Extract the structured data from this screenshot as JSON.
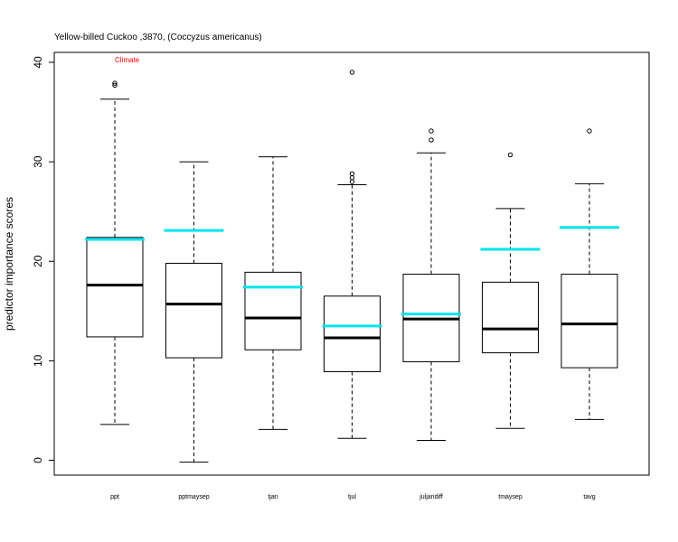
{
  "chart_data": {
    "type": "boxplot",
    "title": "Yellow-billed Cuckoo ,3870, (Coccyzus americanus)",
    "ylabel": "predictor importance scores",
    "xlabel": "",
    "ylim": [
      -1.5,
      41
    ],
    "yticks": [
      0,
      10,
      20,
      30,
      40
    ],
    "grid": false,
    "annotation": {
      "text": "Climate",
      "color": "#ff0000"
    },
    "categories": [
      "ppt",
      "pptmaysep",
      "tjan",
      "tjul",
      "julјandiff",
      "tmaysep",
      "tavg"
    ],
    "boxes": [
      {
        "whisker_low": 3.6,
        "q1": 12.4,
        "median": 17.6,
        "q3": 22.4,
        "whisker_high": 36.3,
        "outliers": [
          37.7,
          37.9
        ]
      },
      {
        "whisker_low": -0.2,
        "q1": 10.3,
        "median": 15.7,
        "q3": 19.8,
        "whisker_high": 30.0,
        "outliers": []
      },
      {
        "whisker_low": 3.1,
        "q1": 11.1,
        "median": 14.3,
        "q3": 18.9,
        "whisker_high": 30.5,
        "outliers": []
      },
      {
        "whisker_low": 2.2,
        "q1": 8.9,
        "median": 12.3,
        "q3": 16.5,
        "whisker_high": 27.7,
        "outliers": [
          28.0,
          28.4,
          28.8,
          39.0
        ]
      },
      {
        "whisker_low": 2.0,
        "q1": 9.9,
        "median": 14.2,
        "q3": 18.7,
        "whisker_high": 30.9,
        "outliers": [
          32.2,
          33.1
        ]
      },
      {
        "whisker_low": 3.2,
        "q1": 10.8,
        "median": 13.2,
        "q3": 17.9,
        "whisker_high": 25.3,
        "outliers": [
          30.7
        ]
      },
      {
        "whisker_low": 4.1,
        "q1": 9.3,
        "median": 13.7,
        "q3": 18.7,
        "whisker_high": 27.8,
        "outliers": [
          33.1
        ]
      }
    ],
    "reference_series": {
      "color": "#00e5ee",
      "values": [
        22.2,
        23.1,
        17.4,
        13.5,
        14.7,
        21.2,
        23.4
      ]
    }
  }
}
